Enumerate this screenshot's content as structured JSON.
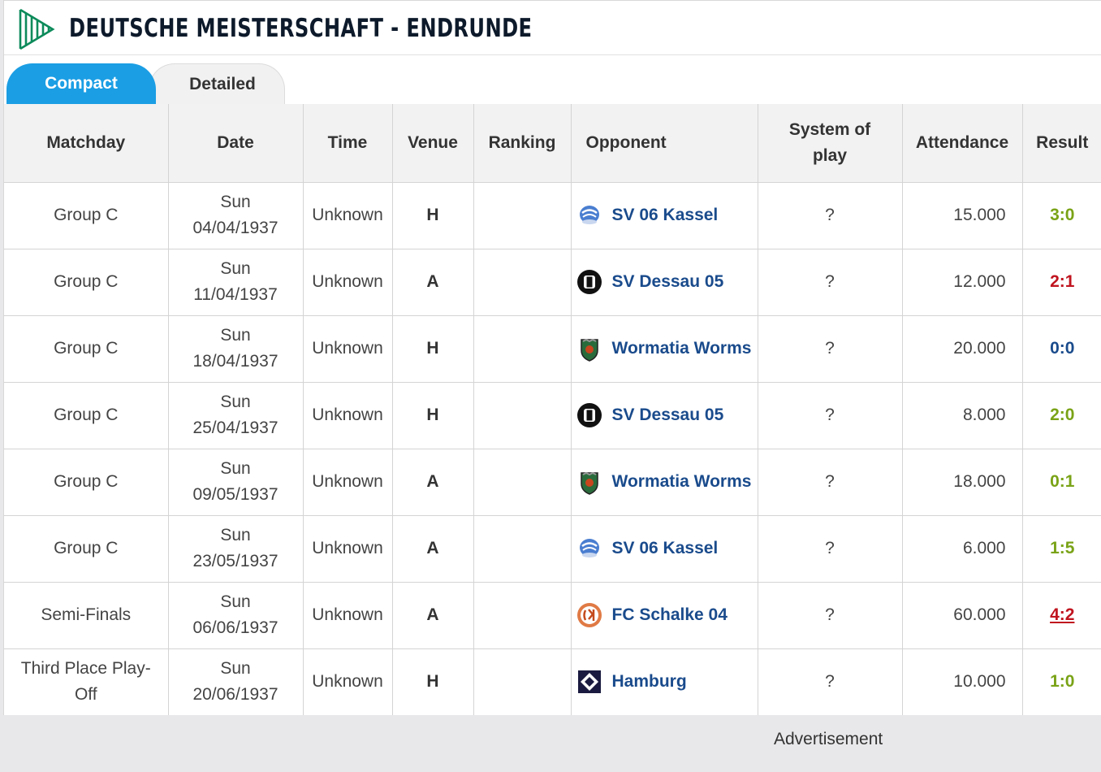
{
  "header": {
    "title": "DEUTSCHE MEISTERSCHAFT - ENDRUNDE"
  },
  "tabs": [
    {
      "label": "Compact",
      "active": true
    },
    {
      "label": "Detailed",
      "active": false
    }
  ],
  "table": {
    "columns": [
      "Matchday",
      "Date",
      "Time",
      "Venue",
      "Ranking",
      "Opponent",
      "System of play",
      "Attendance",
      "Result"
    ],
    "rows": [
      {
        "matchday": "Group C",
        "day": "Sun",
        "date": "04/04/1937",
        "time": "Unknown",
        "venue": "H",
        "ranking": "",
        "opponent": "SV 06 Kassel",
        "crest": "kassel-crest-icon",
        "system": "?",
        "attendance": "15.000",
        "result": "3:0",
        "result_color": "#7aa317"
      },
      {
        "matchday": "Group C",
        "day": "Sun",
        "date": "11/04/1937",
        "time": "Unknown",
        "venue": "A",
        "ranking": "",
        "opponent": "SV Dessau 05",
        "crest": "dessau-crest-icon",
        "system": "?",
        "attendance": "12.000",
        "result": "2:1",
        "result_color": "#c0141f"
      },
      {
        "matchday": "Group C",
        "day": "Sun",
        "date": "18/04/1937",
        "time": "Unknown",
        "venue": "H",
        "ranking": "",
        "opponent": "Wormatia Worms",
        "crest": "worms-crest-icon",
        "system": "?",
        "attendance": "20.000",
        "result": "0:0",
        "result_color": "#1a4b8c"
      },
      {
        "matchday": "Group C",
        "day": "Sun",
        "date": "25/04/1937",
        "time": "Unknown",
        "venue": "H",
        "ranking": "",
        "opponent": "SV Dessau 05",
        "crest": "dessau-crest-icon",
        "system": "?",
        "attendance": "8.000",
        "result": "2:0",
        "result_color": "#7aa317"
      },
      {
        "matchday": "Group C",
        "day": "Sun",
        "date": "09/05/1937",
        "time": "Unknown",
        "venue": "A",
        "ranking": "",
        "opponent": "Wormatia Worms",
        "crest": "worms-crest-icon",
        "system": "?",
        "attendance": "18.000",
        "result": "0:1",
        "result_color": "#7aa317"
      },
      {
        "matchday": "Group C",
        "day": "Sun",
        "date": "23/05/1937",
        "time": "Unknown",
        "venue": "A",
        "ranking": "",
        "opponent": "SV 06 Kassel",
        "crest": "kassel-crest-icon",
        "system": "?",
        "attendance": "6.000",
        "result": "1:5",
        "result_color": "#7aa317"
      },
      {
        "matchday": "Semi-Finals",
        "day": "Sun",
        "date": "06/06/1937",
        "time": "Unknown",
        "venue": "A",
        "ranking": "",
        "opponent": "FC Schalke 04",
        "crest": "schalke-crest-icon",
        "system": "?",
        "attendance": "60.000",
        "result": "4:2",
        "result_color": "#c0141f"
      },
      {
        "matchday": "Third Place Play-Off",
        "day": "Sun",
        "date": "20/06/1937",
        "time": "Unknown",
        "venue": "H",
        "ranking": "",
        "opponent": "Hamburg",
        "crest": "hamburg-crest-icon",
        "system": "?",
        "attendance": "10.000",
        "result": "1:0",
        "result_color": "#7aa317"
      }
    ]
  },
  "footer": {
    "advertisement": "Advertisement"
  },
  "colors": {
    "accent": "#1b9ee4",
    "link": "#1a4b8c",
    "win": "#7aa317",
    "loss": "#c0141f",
    "draw": "#1a4b8c"
  }
}
